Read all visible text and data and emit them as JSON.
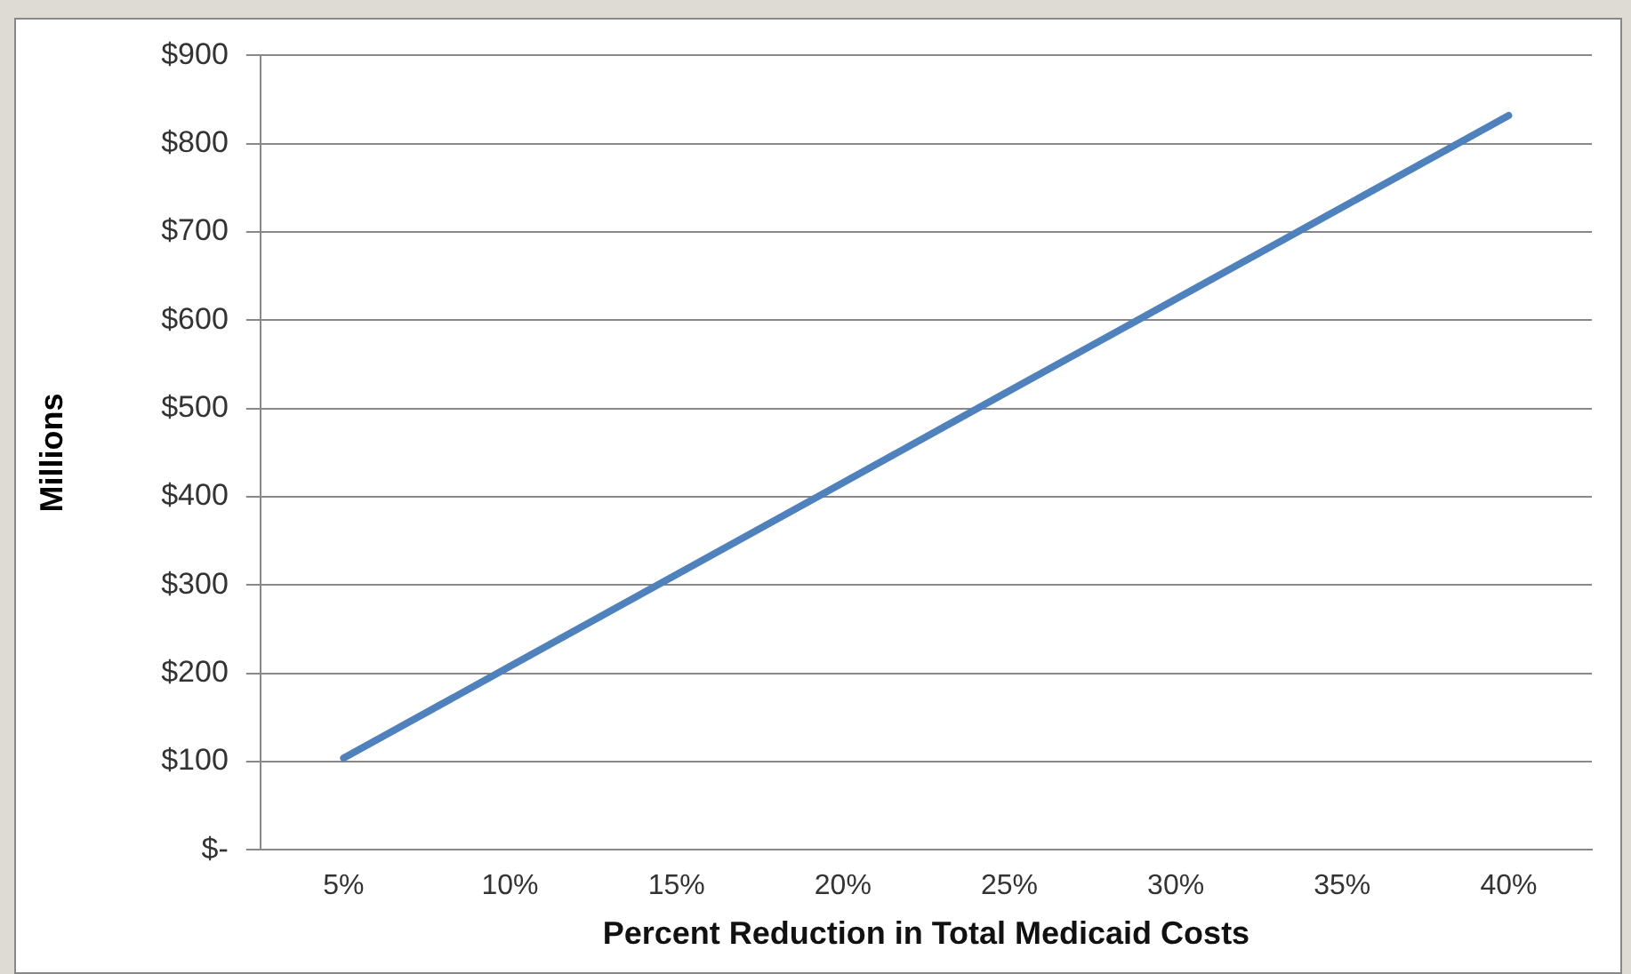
{
  "chart_data": {
    "type": "line",
    "xlabel": "Percent Reduction in Total Medicaid Costs",
    "ylabel": "Millions",
    "categories": [
      "5%",
      "10%",
      "15%",
      "20%",
      "25%",
      "30%",
      "35%",
      "40%"
    ],
    "series": [
      {
        "color": "#4f81bd",
        "values": [
          104,
          208,
          312,
          416,
          520,
          624,
          728,
          832
        ]
      }
    ],
    "ylim": [
      0,
      900
    ],
    "yticks": [
      {
        "value": 0,
        "label": "$-"
      },
      {
        "value": 100,
        "label": "$100"
      },
      {
        "value": 200,
        "label": "$200"
      },
      {
        "value": 300,
        "label": "$300"
      },
      {
        "value": 400,
        "label": "$400"
      },
      {
        "value": 500,
        "label": "$500"
      },
      {
        "value": 600,
        "label": "$600"
      },
      {
        "value": 700,
        "label": "$700"
      },
      {
        "value": 800,
        "label": "$800"
      },
      {
        "value": 900,
        "label": "$900"
      }
    ],
    "grid": "y",
    "legend": false,
    "marker": "none",
    "line_style": "solid"
  }
}
